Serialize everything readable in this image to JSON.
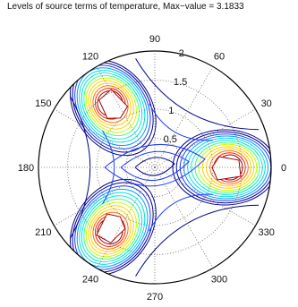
{
  "chart_data": {
    "type": "polar-contour",
    "title": "Levels of source terms of temperature, Max−value = 3.1833",
    "max_value": 3.1833,
    "radial_ticks": [
      "0.5",
      "1",
      "1.5",
      "2"
    ],
    "radial_tick_values": [
      0.5,
      1,
      1.5,
      2
    ],
    "r_max": 2,
    "angle_ticks": [
      "0",
      "30",
      "60",
      "90",
      "120",
      "150",
      "180",
      "210",
      "240",
      "270",
      "300",
      "330"
    ],
    "angle_tick_values": [
      0,
      30,
      60,
      90,
      120,
      150,
      180,
      210,
      240,
      270,
      300,
      330
    ],
    "grid": true,
    "lobes": [
      {
        "angle_deg": 0,
        "radius": 1.2,
        "peak": 3.1833
      },
      {
        "angle_deg": 125,
        "radius": 1.25,
        "peak": 3.1833
      },
      {
        "angle_deg": 235,
        "radius": 1.25,
        "peak": 3.1833
      }
    ],
    "colormap": [
      "#00008b",
      "#1e3cff",
      "#00a0ff",
      "#00e0e0",
      "#40ff80",
      "#c0ff00",
      "#ffd000",
      "#ff7000",
      "#ff2000",
      "#a00000"
    ]
  }
}
